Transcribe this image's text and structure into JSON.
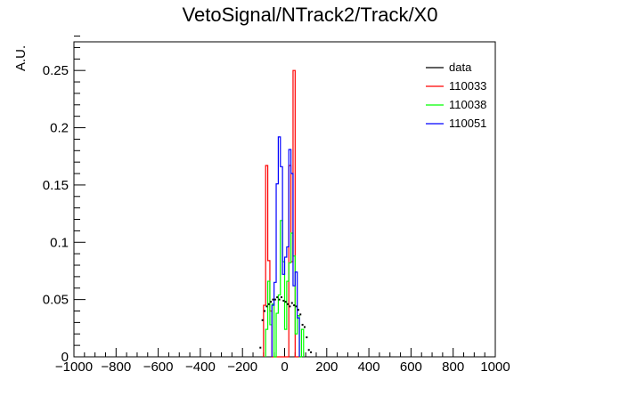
{
  "chart_data": {
    "type": "histogram",
    "title": "VetoSignal/NTrack2/Track/X0",
    "xlabel": "",
    "ylabel": "A.U.",
    "xlim": [
      -1000,
      1000
    ],
    "ylim": [
      0,
      0.275
    ],
    "x_ticks": [
      -1000,
      -800,
      -600,
      -400,
      -200,
      0,
      200,
      400,
      600,
      800,
      1000
    ],
    "x_tick_labels": [
      "−1000",
      "−800",
      "−600",
      "−400",
      "−200",
      "0",
      "200",
      "400",
      "600",
      "800",
      "1000"
    ],
    "y_ticks": [
      0,
      0.05,
      0.1,
      0.15,
      0.2,
      0.25
    ],
    "y_tick_labels": [
      "0",
      "0.05",
      "0.1",
      "0.15",
      "0.2",
      "0.25"
    ],
    "legend_position": "top-right",
    "bin_width": 10,
    "series": [
      {
        "name": "data",
        "style": "points",
        "color": "#000000",
        "x": [
          -115,
          -105,
          -95,
          -85,
          -75,
          -65,
          -55,
          -45,
          -35,
          -25,
          -15,
          -5,
          5,
          15,
          25,
          35,
          45,
          55,
          65,
          75,
          85,
          95,
          105,
          115,
          125
        ],
        "values": [
          0.008,
          0.032,
          0.04,
          0.044,
          0.046,
          0.048,
          0.05,
          0.05,
          0.052,
          0.05,
          0.052,
          0.049,
          0.048,
          0.046,
          0.044,
          0.047,
          0.045,
          0.044,
          0.041,
          0.037,
          0.028,
          0.026,
          0.017,
          0.006,
          0.004
        ]
      },
      {
        "name": "110033",
        "style": "step",
        "color": "#ff0000",
        "x": [
          -95,
          -85,
          -75,
          -65,
          -55,
          -45,
          -35,
          -25,
          -15,
          -5,
          5,
          15,
          25,
          35,
          45,
          55,
          65,
          75
        ],
        "values": [
          0.045,
          0.167,
          0.084,
          0.04,
          0.0,
          0.0,
          0.0,
          0.0,
          0.0,
          0.0,
          0.0,
          0.0,
          0.167,
          0.083,
          0.25,
          0.0,
          0.0,
          0.0
        ]
      },
      {
        "name": "110038",
        "style": "step",
        "color": "#00ff00",
        "x": [
          -85,
          -75,
          -65,
          -55,
          -45,
          -35,
          -25,
          -15,
          -5,
          5,
          15,
          25,
          35,
          45,
          55,
          65,
          75,
          85
        ],
        "values": [
          0.024,
          0.066,
          0.028,
          0.046,
          0.0,
          0.038,
          0.054,
          0.119,
          0.083,
          0.024,
          0.066,
          0.082,
          0.108,
          0.088,
          0.02,
          0.036,
          0.0,
          0.024
        ]
      },
      {
        "name": "110051",
        "style": "step",
        "color": "#0000ff",
        "x": [
          -55,
          -45,
          -35,
          -25,
          -15,
          -5,
          5,
          15,
          25,
          35,
          45,
          55,
          65
        ],
        "values": [
          0.045,
          0.065,
          0.151,
          0.192,
          0.166,
          0.072,
          0.087,
          0.096,
          0.181,
          0.16,
          0.062,
          0.074,
          0.034
        ]
      }
    ]
  }
}
